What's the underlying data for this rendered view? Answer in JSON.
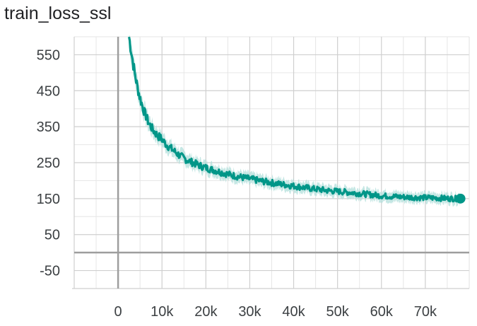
{
  "chart_data": {
    "type": "line",
    "title": "train_loss_ssl",
    "xlabel": "",
    "ylabel": "",
    "xlim": [
      -10000,
      80000
    ],
    "ylim": [
      -100,
      600
    ],
    "grid": true,
    "legend": "none",
    "x_ticks": [
      0,
      10000,
      20000,
      30000,
      40000,
      50000,
      60000,
      70000
    ],
    "x_tick_labels": [
      "0",
      "10k",
      "20k",
      "30k",
      "40k",
      "50k",
      "60k",
      "70k"
    ],
    "y_ticks": [
      -50,
      50,
      150,
      250,
      350,
      450,
      550
    ],
    "y_tick_labels": [
      "-50",
      "50",
      "150",
      "250",
      "350",
      "450",
      "550"
    ],
    "series": [
      {
        "color": "#009688",
        "band_color": "#b2dfdb",
        "x": [
          2500,
          3000,
          3500,
          4000,
          4500,
          5000,
          5500,
          6000,
          7000,
          8000,
          9000,
          10000,
          11000,
          12000,
          13000,
          14000,
          15000,
          17000,
          19000,
          21000,
          23000,
          25000,
          27000,
          30000,
          33000,
          36000,
          40000,
          44000,
          48000,
          52000,
          56000,
          60000,
          64000,
          68000,
          72000,
          76000,
          78000
        ],
        "y": [
          600,
          560,
          520,
          485,
          455,
          430,
          410,
          390,
          360,
          340,
          325,
          315,
          300,
          290,
          280,
          270,
          262,
          250,
          240,
          232,
          225,
          218,
          212,
          205,
          198,
          192,
          185,
          178,
          172,
          168,
          163,
          158,
          155,
          153,
          152,
          150,
          150
        ]
      }
    ]
  }
}
